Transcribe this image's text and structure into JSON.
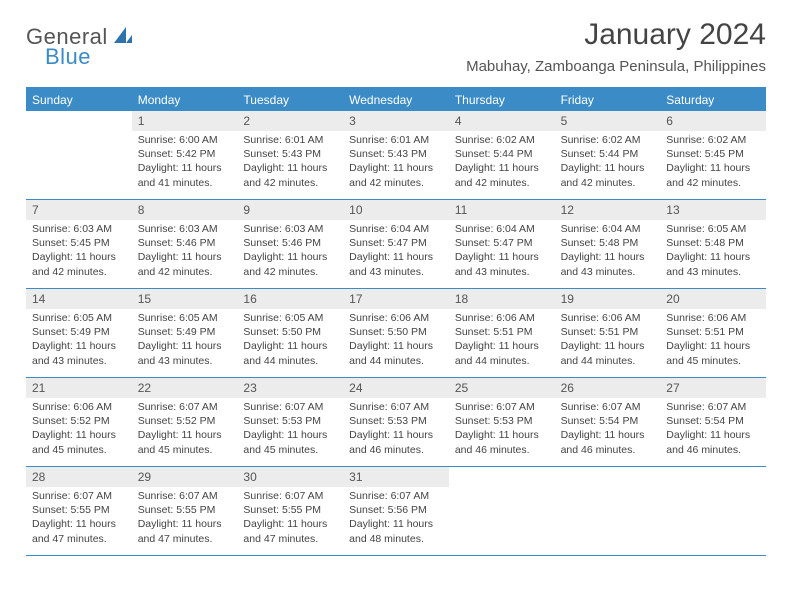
{
  "logo": {
    "text1": "General",
    "text2": "Blue"
  },
  "title": "January 2024",
  "location": "Mabuhay, Zamboanga Peninsula, Philippines",
  "colors": {
    "accent": "#3b8bc6",
    "header_text": "#ffffff",
    "daynum_bg": "#ececec",
    "border": "#3b8bc6",
    "body_text": "#444444",
    "background": "#ffffff"
  },
  "day_headers": [
    "Sunday",
    "Monday",
    "Tuesday",
    "Wednesday",
    "Thursday",
    "Friday",
    "Saturday"
  ],
  "weeks": [
    [
      {
        "num": "",
        "sunrise": "",
        "sunset": "",
        "daylight": ""
      },
      {
        "num": "1",
        "sunrise": "Sunrise: 6:00 AM",
        "sunset": "Sunset: 5:42 PM",
        "daylight": "Daylight: 11 hours and 41 minutes."
      },
      {
        "num": "2",
        "sunrise": "Sunrise: 6:01 AM",
        "sunset": "Sunset: 5:43 PM",
        "daylight": "Daylight: 11 hours and 42 minutes."
      },
      {
        "num": "3",
        "sunrise": "Sunrise: 6:01 AM",
        "sunset": "Sunset: 5:43 PM",
        "daylight": "Daylight: 11 hours and 42 minutes."
      },
      {
        "num": "4",
        "sunrise": "Sunrise: 6:02 AM",
        "sunset": "Sunset: 5:44 PM",
        "daylight": "Daylight: 11 hours and 42 minutes."
      },
      {
        "num": "5",
        "sunrise": "Sunrise: 6:02 AM",
        "sunset": "Sunset: 5:44 PM",
        "daylight": "Daylight: 11 hours and 42 minutes."
      },
      {
        "num": "6",
        "sunrise": "Sunrise: 6:02 AM",
        "sunset": "Sunset: 5:45 PM",
        "daylight": "Daylight: 11 hours and 42 minutes."
      }
    ],
    [
      {
        "num": "7",
        "sunrise": "Sunrise: 6:03 AM",
        "sunset": "Sunset: 5:45 PM",
        "daylight": "Daylight: 11 hours and 42 minutes."
      },
      {
        "num": "8",
        "sunrise": "Sunrise: 6:03 AM",
        "sunset": "Sunset: 5:46 PM",
        "daylight": "Daylight: 11 hours and 42 minutes."
      },
      {
        "num": "9",
        "sunrise": "Sunrise: 6:03 AM",
        "sunset": "Sunset: 5:46 PM",
        "daylight": "Daylight: 11 hours and 42 minutes."
      },
      {
        "num": "10",
        "sunrise": "Sunrise: 6:04 AM",
        "sunset": "Sunset: 5:47 PM",
        "daylight": "Daylight: 11 hours and 43 minutes."
      },
      {
        "num": "11",
        "sunrise": "Sunrise: 6:04 AM",
        "sunset": "Sunset: 5:47 PM",
        "daylight": "Daylight: 11 hours and 43 minutes."
      },
      {
        "num": "12",
        "sunrise": "Sunrise: 6:04 AM",
        "sunset": "Sunset: 5:48 PM",
        "daylight": "Daylight: 11 hours and 43 minutes."
      },
      {
        "num": "13",
        "sunrise": "Sunrise: 6:05 AM",
        "sunset": "Sunset: 5:48 PM",
        "daylight": "Daylight: 11 hours and 43 minutes."
      }
    ],
    [
      {
        "num": "14",
        "sunrise": "Sunrise: 6:05 AM",
        "sunset": "Sunset: 5:49 PM",
        "daylight": "Daylight: 11 hours and 43 minutes."
      },
      {
        "num": "15",
        "sunrise": "Sunrise: 6:05 AM",
        "sunset": "Sunset: 5:49 PM",
        "daylight": "Daylight: 11 hours and 43 minutes."
      },
      {
        "num": "16",
        "sunrise": "Sunrise: 6:05 AM",
        "sunset": "Sunset: 5:50 PM",
        "daylight": "Daylight: 11 hours and 44 minutes."
      },
      {
        "num": "17",
        "sunrise": "Sunrise: 6:06 AM",
        "sunset": "Sunset: 5:50 PM",
        "daylight": "Daylight: 11 hours and 44 minutes."
      },
      {
        "num": "18",
        "sunrise": "Sunrise: 6:06 AM",
        "sunset": "Sunset: 5:51 PM",
        "daylight": "Daylight: 11 hours and 44 minutes."
      },
      {
        "num": "19",
        "sunrise": "Sunrise: 6:06 AM",
        "sunset": "Sunset: 5:51 PM",
        "daylight": "Daylight: 11 hours and 44 minutes."
      },
      {
        "num": "20",
        "sunrise": "Sunrise: 6:06 AM",
        "sunset": "Sunset: 5:51 PM",
        "daylight": "Daylight: 11 hours and 45 minutes."
      }
    ],
    [
      {
        "num": "21",
        "sunrise": "Sunrise: 6:06 AM",
        "sunset": "Sunset: 5:52 PM",
        "daylight": "Daylight: 11 hours and 45 minutes."
      },
      {
        "num": "22",
        "sunrise": "Sunrise: 6:07 AM",
        "sunset": "Sunset: 5:52 PM",
        "daylight": "Daylight: 11 hours and 45 minutes."
      },
      {
        "num": "23",
        "sunrise": "Sunrise: 6:07 AM",
        "sunset": "Sunset: 5:53 PM",
        "daylight": "Daylight: 11 hours and 45 minutes."
      },
      {
        "num": "24",
        "sunrise": "Sunrise: 6:07 AM",
        "sunset": "Sunset: 5:53 PM",
        "daylight": "Daylight: 11 hours and 46 minutes."
      },
      {
        "num": "25",
        "sunrise": "Sunrise: 6:07 AM",
        "sunset": "Sunset: 5:53 PM",
        "daylight": "Daylight: 11 hours and 46 minutes."
      },
      {
        "num": "26",
        "sunrise": "Sunrise: 6:07 AM",
        "sunset": "Sunset: 5:54 PM",
        "daylight": "Daylight: 11 hours and 46 minutes."
      },
      {
        "num": "27",
        "sunrise": "Sunrise: 6:07 AM",
        "sunset": "Sunset: 5:54 PM",
        "daylight": "Daylight: 11 hours and 46 minutes."
      }
    ],
    [
      {
        "num": "28",
        "sunrise": "Sunrise: 6:07 AM",
        "sunset": "Sunset: 5:55 PM",
        "daylight": "Daylight: 11 hours and 47 minutes."
      },
      {
        "num": "29",
        "sunrise": "Sunrise: 6:07 AM",
        "sunset": "Sunset: 5:55 PM",
        "daylight": "Daylight: 11 hours and 47 minutes."
      },
      {
        "num": "30",
        "sunrise": "Sunrise: 6:07 AM",
        "sunset": "Sunset: 5:55 PM",
        "daylight": "Daylight: 11 hours and 47 minutes."
      },
      {
        "num": "31",
        "sunrise": "Sunrise: 6:07 AM",
        "sunset": "Sunset: 5:56 PM",
        "daylight": "Daylight: 11 hours and 48 minutes."
      },
      {
        "num": "",
        "sunrise": "",
        "sunset": "",
        "daylight": ""
      },
      {
        "num": "",
        "sunrise": "",
        "sunset": "",
        "daylight": ""
      },
      {
        "num": "",
        "sunrise": "",
        "sunset": "",
        "daylight": ""
      }
    ]
  ]
}
